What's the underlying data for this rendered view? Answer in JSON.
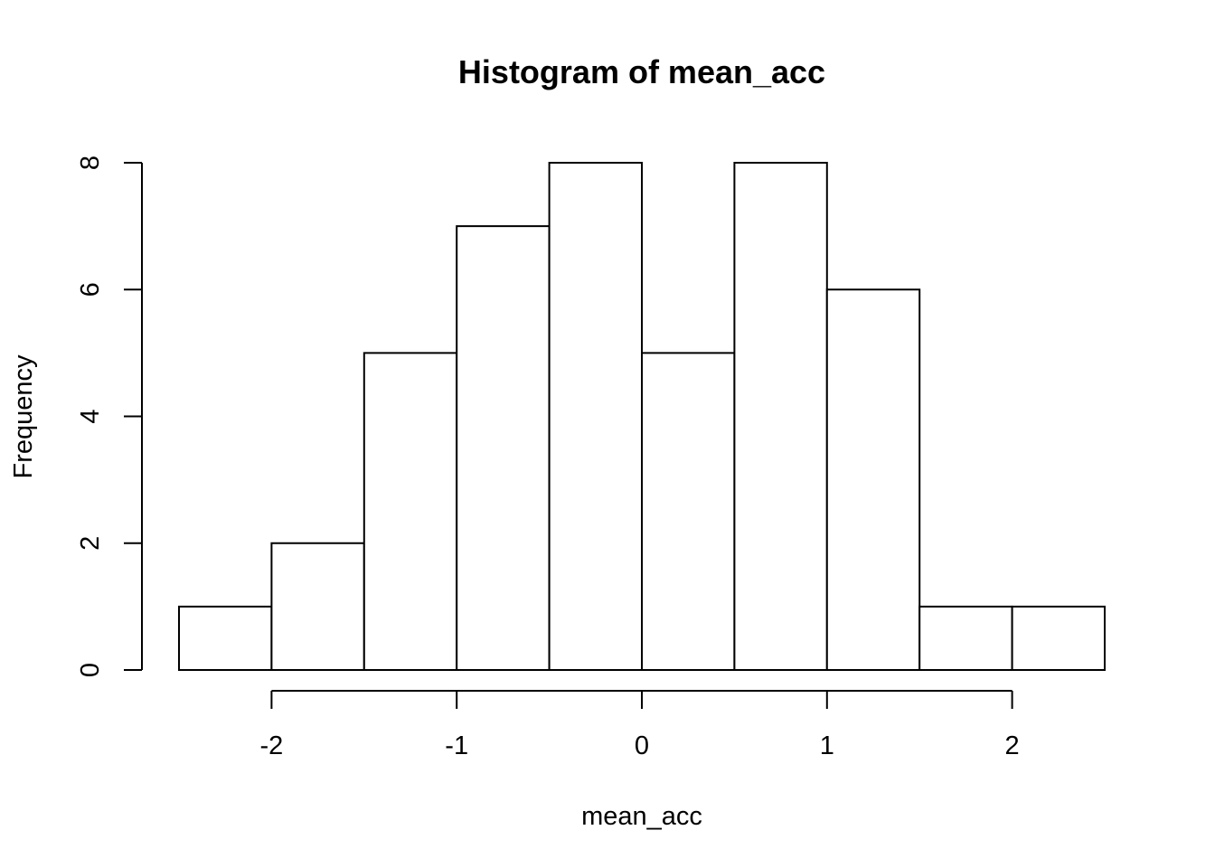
{
  "chart_data": {
    "type": "bar",
    "title": "Histogram of mean_acc",
    "xlabel": "mean_acc",
    "ylabel": "Frequency",
    "bins": [
      {
        "start": -2.5,
        "end": -2.0,
        "count": 1
      },
      {
        "start": -2.0,
        "end": -1.5,
        "count": 2
      },
      {
        "start": -1.5,
        "end": -1.0,
        "count": 5
      },
      {
        "start": -1.0,
        "end": -0.5,
        "count": 7
      },
      {
        "start": -0.5,
        "end": 0.0,
        "count": 8
      },
      {
        "start": 0.0,
        "end": 0.5,
        "count": 5
      },
      {
        "start": 0.5,
        "end": 1.0,
        "count": 8
      },
      {
        "start": 1.0,
        "end": 1.5,
        "count": 6
      },
      {
        "start": 1.5,
        "end": 2.0,
        "count": 1
      },
      {
        "start": 2.0,
        "end": 2.5,
        "count": 1
      }
    ],
    "x_ticks": [
      -2,
      -1,
      0,
      1,
      2
    ],
    "x_tick_labels": [
      "-2",
      "-1",
      "0",
      "1",
      "2"
    ],
    "y_ticks": [
      0,
      2,
      4,
      6,
      8
    ],
    "y_tick_labels": [
      "0",
      "2",
      "4",
      "6",
      "8"
    ],
    "xlim": [
      -2.5,
      2.5
    ],
    "ylim": [
      0,
      8
    ],
    "grid": false,
    "bar_fill": "#ffffff",
    "bar_stroke": "#000000"
  }
}
